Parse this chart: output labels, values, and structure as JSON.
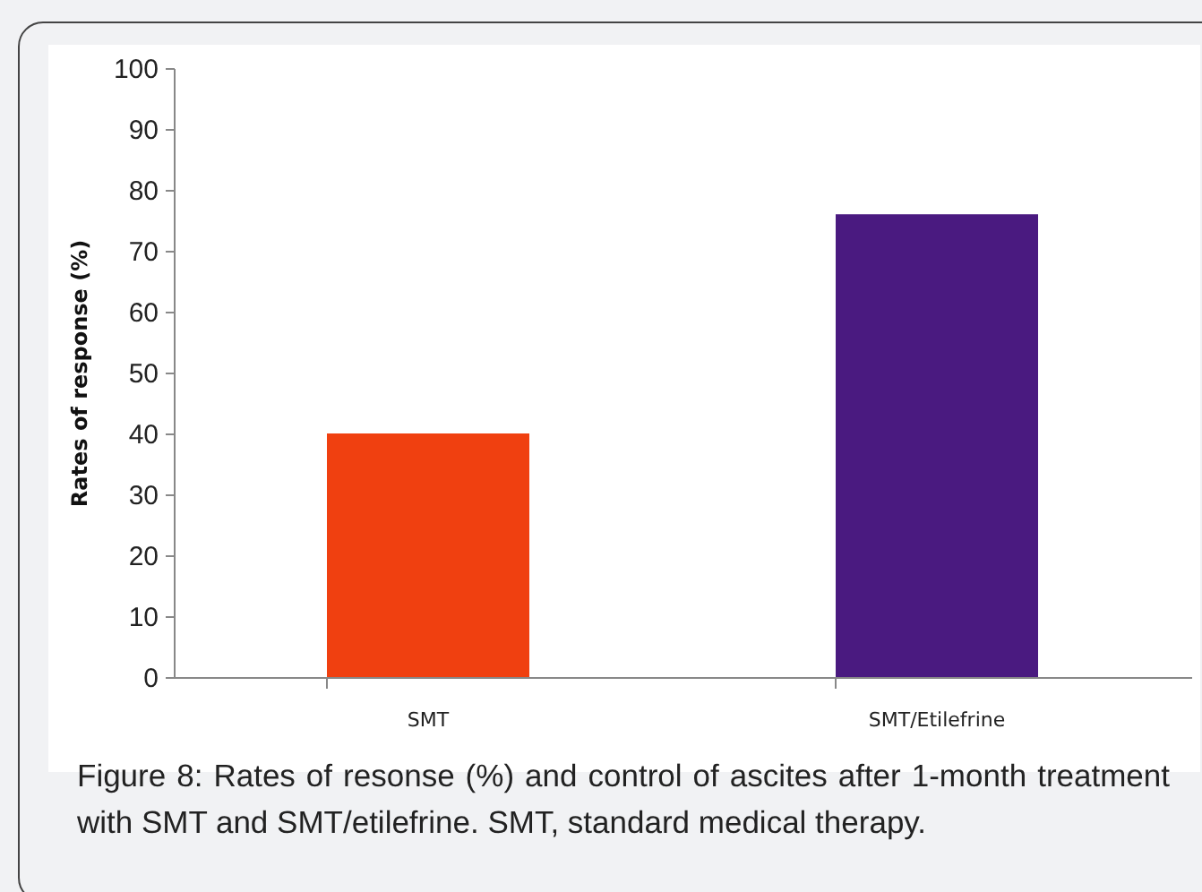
{
  "chart_data": {
    "type": "bar",
    "categories": [
      "SMT",
      "SMT/Etilefrine"
    ],
    "values": [
      40,
      76
    ],
    "colors": [
      "#f04010",
      "#4a1a80"
    ],
    "ylabel": "Rates of response (%)",
    "ylim": [
      0,
      100
    ],
    "yticks": [
      0,
      10,
      20,
      30,
      40,
      50,
      60,
      70,
      80,
      90,
      100
    ],
    "grid": false,
    "annotations": [
      "Figure 8: Rates of resonse (%) and control of ascites after 1-month treatment with SMT and SMT/etilefrine. SMT, standard medical therapy."
    ]
  }
}
